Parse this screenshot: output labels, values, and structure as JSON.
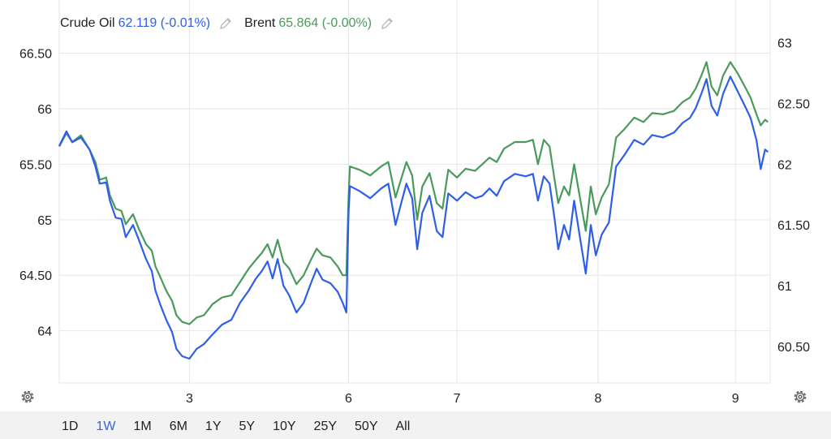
{
  "legend": {
    "s1_name": "Crude Oil",
    "s1_value": "62.119 (-0.01%)",
    "s2_name": "Brent",
    "s2_value": "65.864 (-0.00%)"
  },
  "colors": {
    "crude": "#2f5ee8",
    "brent": "#4a9a5c",
    "grid": "#e6e6e6",
    "range_active": "#3367d6"
  },
  "icons": {
    "legend_edit": "pencil-icon",
    "settings": "gear-icon"
  },
  "ranges": {
    "items": [
      "1D",
      "1W",
      "1M",
      "6M",
      "1Y",
      "5Y",
      "10Y",
      "25Y",
      "50Y",
      "All"
    ],
    "active": "1W"
  },
  "chart_data": {
    "type": "line",
    "grid": true,
    "legend_position": "top-left",
    "x_ticks": [
      {
        "x": 1.8,
        "label": "3"
      },
      {
        "x": 4.0,
        "label": "6"
      },
      {
        "x": 5.5,
        "label": "7"
      },
      {
        "x": 7.45,
        "label": "8"
      },
      {
        "x": 9.35,
        "label": "9"
      }
    ],
    "x_range": [
      0,
      9.83
    ],
    "y_left": {
      "range": [
        63.53,
        66.65
      ],
      "ticks": [
        64,
        64.5,
        65,
        65.5,
        66,
        66.5
      ],
      "labels": [
        "64",
        "64.50",
        "65",
        "65.50",
        "66",
        "66.50"
      ]
    },
    "y_right": {
      "range": [
        60.2,
        63.05
      ],
      "ticks": [
        60.5,
        61,
        61.5,
        62,
        62.5,
        63
      ],
      "labels": [
        "60.50",
        "61",
        "61.50",
        "62",
        "62.50",
        "63"
      ]
    },
    "series": [
      {
        "name": "Brent",
        "axis": "left",
        "color": "#4a9a5c",
        "points": [
          [
            0.0,
            65.66
          ],
          [
            0.1,
            65.78
          ],
          [
            0.18,
            65.7
          ],
          [
            0.3,
            65.76
          ],
          [
            0.42,
            65.63
          ],
          [
            0.5,
            65.52
          ],
          [
            0.56,
            65.36
          ],
          [
            0.65,
            65.38
          ],
          [
            0.7,
            65.22
          ],
          [
            0.78,
            65.1
          ],
          [
            0.86,
            65.08
          ],
          [
            0.92,
            64.96
          ],
          [
            1.02,
            65.05
          ],
          [
            1.1,
            64.92
          ],
          [
            1.2,
            64.78
          ],
          [
            1.28,
            64.72
          ],
          [
            1.33,
            64.58
          ],
          [
            1.4,
            64.48
          ],
          [
            1.48,
            64.36
          ],
          [
            1.56,
            64.27
          ],
          [
            1.62,
            64.14
          ],
          [
            1.7,
            64.08
          ],
          [
            1.8,
            64.06
          ],
          [
            1.9,
            64.12
          ],
          [
            2.0,
            64.14
          ],
          [
            2.12,
            64.24
          ],
          [
            2.25,
            64.3
          ],
          [
            2.38,
            64.32
          ],
          [
            2.5,
            64.44
          ],
          [
            2.62,
            64.56
          ],
          [
            2.72,
            64.64
          ],
          [
            2.8,
            64.7
          ],
          [
            2.88,
            64.78
          ],
          [
            2.95,
            64.66
          ],
          [
            3.02,
            64.82
          ],
          [
            3.1,
            64.62
          ],
          [
            3.18,
            64.56
          ],
          [
            3.28,
            64.42
          ],
          [
            3.38,
            64.5
          ],
          [
            3.48,
            64.64
          ],
          [
            3.56,
            64.74
          ],
          [
            3.64,
            64.68
          ],
          [
            3.75,
            64.66
          ],
          [
            3.85,
            64.58
          ],
          [
            3.92,
            64.5
          ],
          [
            3.97,
            64.5
          ],
          [
            4.0,
            65.2
          ],
          [
            4.02,
            65.48
          ],
          [
            4.15,
            65.45
          ],
          [
            4.3,
            65.4
          ],
          [
            4.45,
            65.48
          ],
          [
            4.55,
            65.52
          ],
          [
            4.65,
            65.2
          ],
          [
            4.72,
            65.35
          ],
          [
            4.8,
            65.52
          ],
          [
            4.88,
            65.4
          ],
          [
            4.95,
            65.0
          ],
          [
            5.02,
            65.3
          ],
          [
            5.12,
            65.42
          ],
          [
            5.22,
            65.15
          ],
          [
            5.3,
            65.1
          ],
          [
            5.38,
            65.45
          ],
          [
            5.5,
            65.38
          ],
          [
            5.62,
            65.46
          ],
          [
            5.75,
            65.44
          ],
          [
            5.85,
            65.5
          ],
          [
            5.95,
            65.56
          ],
          [
            6.05,
            65.52
          ],
          [
            6.15,
            65.64
          ],
          [
            6.3,
            65.7
          ],
          [
            6.45,
            65.7
          ],
          [
            6.55,
            65.72
          ],
          [
            6.62,
            65.5
          ],
          [
            6.7,
            65.72
          ],
          [
            6.78,
            65.66
          ],
          [
            6.85,
            65.36
          ],
          [
            6.9,
            65.15
          ],
          [
            6.98,
            65.3
          ],
          [
            7.05,
            65.22
          ],
          [
            7.12,
            65.5
          ],
          [
            7.2,
            65.2
          ],
          [
            7.28,
            64.9
          ],
          [
            7.35,
            65.3
          ],
          [
            7.42,
            65.05
          ],
          [
            7.5,
            65.2
          ],
          [
            7.6,
            65.32
          ],
          [
            7.7,
            65.74
          ],
          [
            7.82,
            65.82
          ],
          [
            7.95,
            65.92
          ],
          [
            8.08,
            65.88
          ],
          [
            8.2,
            65.96
          ],
          [
            8.35,
            65.95
          ],
          [
            8.5,
            65.98
          ],
          [
            8.62,
            66.06
          ],
          [
            8.72,
            66.1
          ],
          [
            8.8,
            66.18
          ],
          [
            8.88,
            66.3
          ],
          [
            8.95,
            66.42
          ],
          [
            9.02,
            66.2
          ],
          [
            9.1,
            66.12
          ],
          [
            9.18,
            66.3
          ],
          [
            9.28,
            66.42
          ],
          [
            9.38,
            66.32
          ],
          [
            9.48,
            66.2
          ],
          [
            9.56,
            66.1
          ],
          [
            9.64,
            65.95
          ],
          [
            9.7,
            65.85
          ],
          [
            9.76,
            65.9
          ],
          [
            9.8,
            65.88
          ]
        ]
      },
      {
        "name": "Crude Oil",
        "axis": "right",
        "color": "#2f5ee8",
        "points": [
          [
            0.0,
            62.15
          ],
          [
            0.1,
            62.27
          ],
          [
            0.18,
            62.18
          ],
          [
            0.3,
            62.22
          ],
          [
            0.42,
            62.12
          ],
          [
            0.5,
            61.98
          ],
          [
            0.56,
            61.84
          ],
          [
            0.65,
            61.85
          ],
          [
            0.7,
            61.7
          ],
          [
            0.78,
            61.56
          ],
          [
            0.86,
            61.55
          ],
          [
            0.92,
            61.4
          ],
          [
            1.02,
            61.5
          ],
          [
            1.1,
            61.38
          ],
          [
            1.2,
            61.22
          ],
          [
            1.28,
            61.12
          ],
          [
            1.33,
            60.96
          ],
          [
            1.4,
            60.84
          ],
          [
            1.48,
            60.72
          ],
          [
            1.56,
            60.62
          ],
          [
            1.62,
            60.48
          ],
          [
            1.7,
            60.42
          ],
          [
            1.8,
            60.4
          ],
          [
            1.9,
            60.48
          ],
          [
            2.0,
            60.52
          ],
          [
            2.12,
            60.6
          ],
          [
            2.25,
            60.68
          ],
          [
            2.38,
            60.72
          ],
          [
            2.5,
            60.86
          ],
          [
            2.62,
            60.96
          ],
          [
            2.72,
            61.06
          ],
          [
            2.8,
            61.12
          ],
          [
            2.88,
            61.2
          ],
          [
            2.95,
            61.06
          ],
          [
            3.02,
            61.22
          ],
          [
            3.1,
            61.0
          ],
          [
            3.18,
            60.92
          ],
          [
            3.28,
            60.78
          ],
          [
            3.38,
            60.86
          ],
          [
            3.48,
            61.02
          ],
          [
            3.56,
            61.14
          ],
          [
            3.64,
            61.05
          ],
          [
            3.75,
            61.02
          ],
          [
            3.85,
            60.95
          ],
          [
            3.92,
            60.86
          ],
          [
            3.97,
            60.78
          ],
          [
            4.0,
            61.6
          ],
          [
            4.02,
            61.82
          ],
          [
            4.15,
            61.78
          ],
          [
            4.3,
            61.72
          ],
          [
            4.45,
            61.8
          ],
          [
            4.55,
            61.84
          ],
          [
            4.65,
            61.5
          ],
          [
            4.72,
            61.66
          ],
          [
            4.8,
            61.84
          ],
          [
            4.88,
            61.72
          ],
          [
            4.95,
            61.3
          ],
          [
            5.02,
            61.6
          ],
          [
            5.12,
            61.74
          ],
          [
            5.22,
            61.45
          ],
          [
            5.3,
            61.4
          ],
          [
            5.38,
            61.76
          ],
          [
            5.5,
            61.7
          ],
          [
            5.62,
            61.77
          ],
          [
            5.75,
            61.72
          ],
          [
            5.85,
            61.74
          ],
          [
            5.95,
            61.8
          ],
          [
            6.05,
            61.74
          ],
          [
            6.15,
            61.86
          ],
          [
            6.3,
            61.92
          ],
          [
            6.45,
            61.9
          ],
          [
            6.55,
            61.92
          ],
          [
            6.62,
            61.7
          ],
          [
            6.7,
            61.9
          ],
          [
            6.78,
            61.84
          ],
          [
            6.85,
            61.55
          ],
          [
            6.9,
            61.3
          ],
          [
            6.98,
            61.5
          ],
          [
            7.05,
            61.38
          ],
          [
            7.12,
            61.7
          ],
          [
            7.2,
            61.4
          ],
          [
            7.28,
            61.1
          ],
          [
            7.35,
            61.5
          ],
          [
            7.42,
            61.25
          ],
          [
            7.5,
            61.42
          ],
          [
            7.6,
            61.52
          ],
          [
            7.7,
            61.98
          ],
          [
            7.82,
            62.08
          ],
          [
            7.95,
            62.2
          ],
          [
            8.08,
            62.16
          ],
          [
            8.2,
            62.24
          ],
          [
            8.35,
            62.22
          ],
          [
            8.5,
            62.26
          ],
          [
            8.62,
            62.34
          ],
          [
            8.72,
            62.38
          ],
          [
            8.8,
            62.46
          ],
          [
            8.88,
            62.58
          ],
          [
            8.95,
            62.7
          ],
          [
            9.02,
            62.48
          ],
          [
            9.1,
            62.4
          ],
          [
            9.18,
            62.58
          ],
          [
            9.28,
            62.72
          ],
          [
            9.38,
            62.6
          ],
          [
            9.48,
            62.48
          ],
          [
            9.56,
            62.38
          ],
          [
            9.64,
            62.2
          ],
          [
            9.7,
            61.96
          ],
          [
            9.76,
            62.12
          ],
          [
            9.8,
            62.1
          ]
        ]
      }
    ]
  }
}
